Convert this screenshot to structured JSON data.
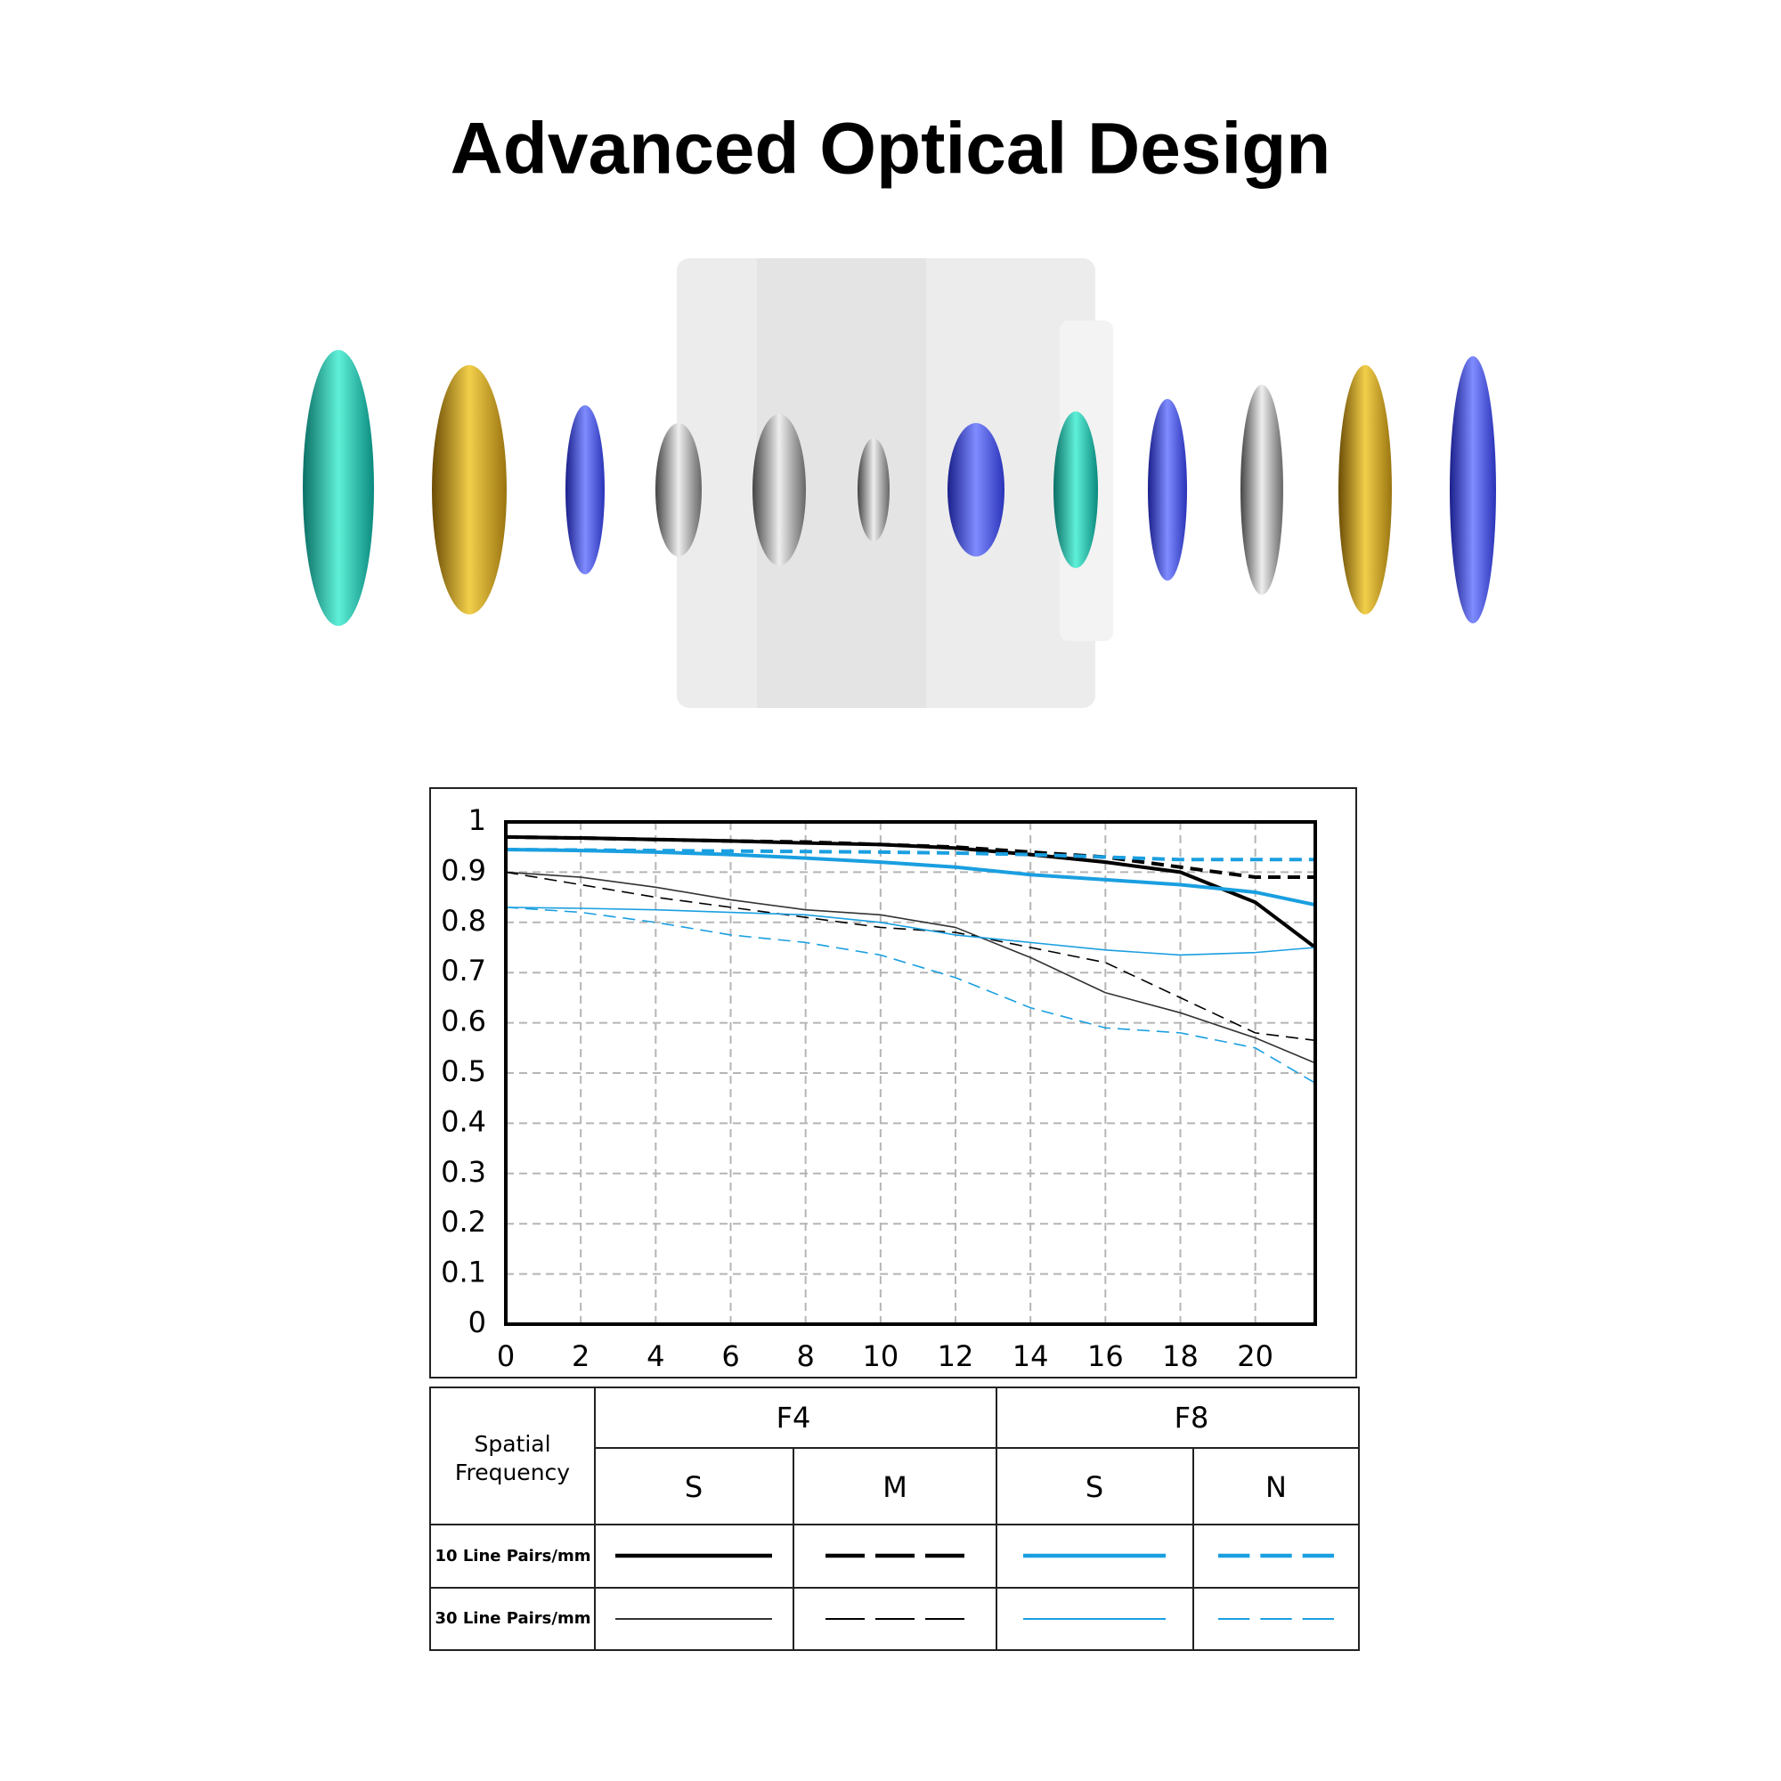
{
  "title": "Advanced Optical Design",
  "chart_data": {
    "type": "line",
    "x": [
      0,
      2,
      4,
      6,
      8,
      10,
      12,
      14,
      16,
      18,
      20,
      21.6
    ],
    "xlim": [
      0,
      21.6
    ],
    "ylim": [
      0,
      1
    ],
    "xticks": [
      0,
      2,
      4,
      6,
      8,
      10,
      12,
      14,
      16,
      18,
      20
    ],
    "yticks": [
      0,
      0.1,
      0.2,
      0.3,
      0.4,
      0.5,
      0.6,
      0.7,
      0.8,
      0.9,
      1
    ],
    "grid": true,
    "series": [
      {
        "color": "#000000",
        "dashed": false,
        "values": [
          0.97,
          0.968,
          0.965,
          0.962,
          0.958,
          0.955,
          0.948,
          0.935,
          0.92,
          0.9,
          0.84,
          0.75
        ]
      },
      {
        "color": "#000000",
        "dashed": true,
        "values": [
          0.97,
          0.968,
          0.965,
          0.962,
          0.96,
          0.955,
          0.95,
          0.94,
          0.93,
          0.91,
          0.89,
          0.89
        ]
      },
      {
        "color": "#1a9fe0",
        "dashed": false,
        "values": [
          0.945,
          0.943,
          0.94,
          0.935,
          0.928,
          0.92,
          0.91,
          0.895,
          0.885,
          0.875,
          0.86,
          0.835
        ]
      },
      {
        "color": "#1a9fe0",
        "dashed": true,
        "values": [
          0.945,
          0.944,
          0.943,
          0.942,
          0.941,
          0.94,
          0.938,
          0.935,
          0.93,
          0.925,
          0.925,
          0.925
        ]
      },
      {
        "color": "#333333",
        "dashed": false,
        "values": [
          0.9,
          0.89,
          0.87,
          0.845,
          0.825,
          0.815,
          0.79,
          0.73,
          0.66,
          0.62,
          0.57,
          0.52
        ]
      },
      {
        "color": "#000000",
        "dashed": true,
        "values": [
          0.9,
          0.875,
          0.85,
          0.83,
          0.81,
          0.79,
          0.78,
          0.75,
          0.72,
          0.65,
          0.58,
          0.565
        ]
      },
      {
        "color": "#1a9fe0",
        "dashed": false,
        "values": [
          0.83,
          0.828,
          0.825,
          0.82,
          0.815,
          0.8,
          0.775,
          0.76,
          0.745,
          0.735,
          0.74,
          0.75
        ]
      },
      {
        "color": "#1a9fe0",
        "dashed": true,
        "values": [
          0.83,
          0.82,
          0.8,
          0.775,
          0.76,
          0.735,
          0.69,
          0.63,
          0.59,
          0.58,
          0.55,
          0.48
        ]
      }
    ]
  },
  "legend_table": {
    "row_header": "Spatial Frequency",
    "groups": [
      {
        "label": "F4",
        "columns": [
          "S",
          "M"
        ]
      },
      {
        "label": "F8",
        "columns": [
          "S",
          "N"
        ]
      }
    ],
    "rows": [
      "10 Line Pairs/mm",
      "30 Line Pairs/mm"
    ]
  }
}
